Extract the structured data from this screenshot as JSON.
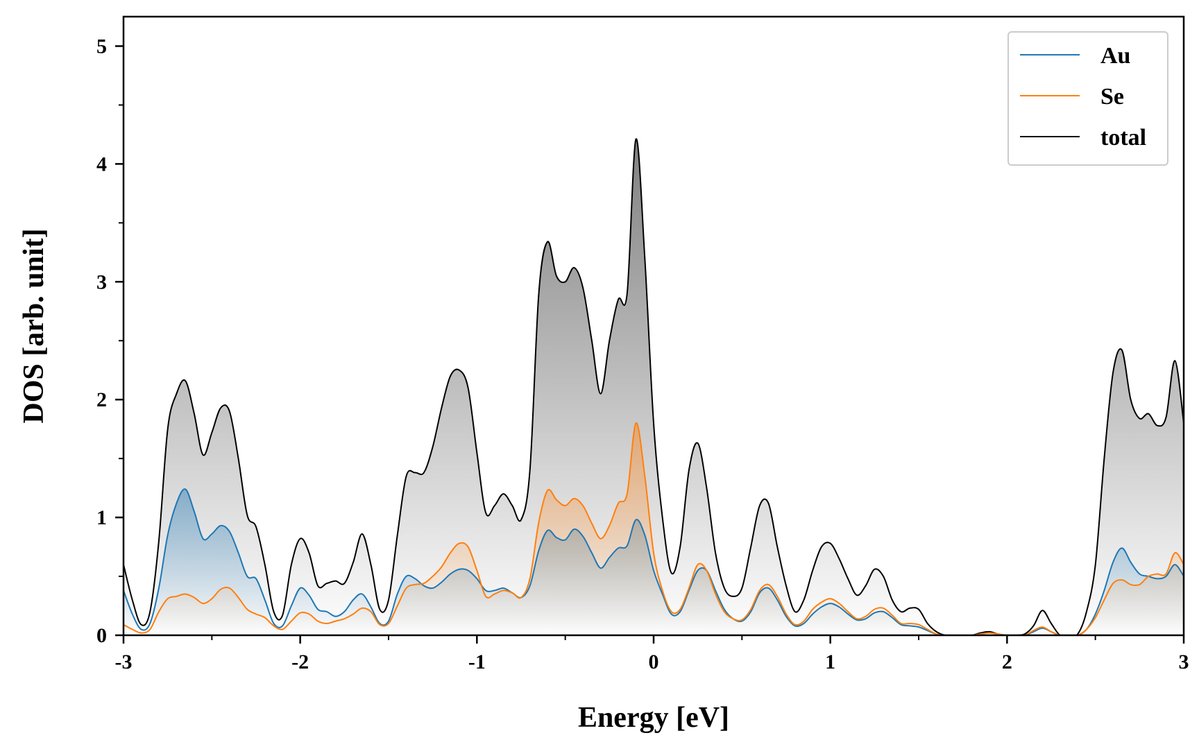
{
  "chart_data": {
    "type": "area",
    "xlabel": "Energy [eV]",
    "ylabel": "DOS [arb. unit]",
    "xlim": [
      -3,
      3
    ],
    "ylim": [
      0,
      5.25
    ],
    "xticks": [
      -3,
      -2,
      -1,
      0,
      1,
      2,
      3
    ],
    "xtick_labels": [
      "-3",
      "-2",
      "-1",
      "0",
      "1",
      "2",
      "3"
    ],
    "yticks": [
      0,
      1,
      2,
      3,
      4,
      5
    ],
    "ytick_labels": [
      "0",
      "1",
      "2",
      "3",
      "4",
      "5"
    ],
    "legend_position": "top-right",
    "grid": false,
    "x": [
      -3.0,
      -2.95,
      -2.9,
      -2.85,
      -2.8,
      -2.75,
      -2.7,
      -2.65,
      -2.6,
      -2.55,
      -2.5,
      -2.45,
      -2.4,
      -2.35,
      -2.3,
      -2.25,
      -2.2,
      -2.15,
      -2.1,
      -2.05,
      -2.0,
      -1.95,
      -1.9,
      -1.85,
      -1.8,
      -1.75,
      -1.7,
      -1.65,
      -1.6,
      -1.55,
      -1.5,
      -1.45,
      -1.4,
      -1.35,
      -1.3,
      -1.25,
      -1.2,
      -1.15,
      -1.1,
      -1.05,
      -1.0,
      -0.95,
      -0.9,
      -0.85,
      -0.8,
      -0.75,
      -0.7,
      -0.65,
      -0.6,
      -0.55,
      -0.5,
      -0.45,
      -0.4,
      -0.35,
      -0.3,
      -0.25,
      -0.2,
      -0.15,
      -0.1,
      -0.05,
      0.0,
      0.05,
      0.1,
      0.15,
      0.2,
      0.25,
      0.3,
      0.35,
      0.4,
      0.45,
      0.5,
      0.55,
      0.6,
      0.65,
      0.7,
      0.75,
      0.8,
      0.85,
      0.9,
      0.95,
      1.0,
      1.05,
      1.1,
      1.15,
      1.2,
      1.25,
      1.3,
      1.35,
      1.4,
      1.45,
      1.5,
      1.55,
      1.6,
      1.65,
      1.7,
      1.75,
      1.8,
      1.85,
      1.9,
      1.95,
      2.0,
      2.05,
      2.1,
      2.15,
      2.2,
      2.25,
      2.3,
      2.35,
      2.4,
      2.45,
      2.5,
      2.55,
      2.6,
      2.65,
      2.7,
      2.75,
      2.8,
      2.85,
      2.9,
      2.95,
      3.0
    ],
    "series": [
      {
        "name": "Au",
        "color": "#1f77b4",
        "values": [
          0.38,
          0.18,
          0.05,
          0.1,
          0.4,
          0.85,
          1.12,
          1.24,
          1.05,
          0.82,
          0.86,
          0.93,
          0.88,
          0.7,
          0.5,
          0.48,
          0.3,
          0.1,
          0.08,
          0.25,
          0.4,
          0.34,
          0.22,
          0.2,
          0.16,
          0.2,
          0.3,
          0.35,
          0.24,
          0.1,
          0.12,
          0.35,
          0.5,
          0.48,
          0.42,
          0.4,
          0.45,
          0.52,
          0.56,
          0.55,
          0.48,
          0.38,
          0.38,
          0.4,
          0.36,
          0.32,
          0.42,
          0.72,
          0.89,
          0.83,
          0.81,
          0.9,
          0.84,
          0.7,
          0.57,
          0.66,
          0.74,
          0.76,
          0.98,
          0.85,
          0.55,
          0.35,
          0.18,
          0.2,
          0.38,
          0.55,
          0.55,
          0.38,
          0.22,
          0.14,
          0.12,
          0.2,
          0.36,
          0.4,
          0.3,
          0.16,
          0.08,
          0.1,
          0.18,
          0.24,
          0.27,
          0.24,
          0.18,
          0.13,
          0.14,
          0.19,
          0.2,
          0.15,
          0.09,
          0.08,
          0.07,
          0.04,
          0.01,
          0.0,
          0.0,
          0.0,
          0.0,
          0.01,
          0.02,
          0.01,
          0.0,
          0.0,
          0.0,
          0.03,
          0.06,
          0.03,
          0.0,
          0.0,
          0.0,
          0.05,
          0.18,
          0.38,
          0.62,
          0.74,
          0.62,
          0.52,
          0.5,
          0.48,
          0.5,
          0.6,
          0.5
        ]
      },
      {
        "name": "Se",
        "color": "#ff7f0e",
        "values": [
          0.09,
          0.05,
          0.02,
          0.05,
          0.2,
          0.31,
          0.33,
          0.35,
          0.32,
          0.27,
          0.31,
          0.39,
          0.4,
          0.32,
          0.22,
          0.18,
          0.15,
          0.08,
          0.05,
          0.12,
          0.19,
          0.18,
          0.12,
          0.1,
          0.12,
          0.14,
          0.18,
          0.23,
          0.2,
          0.09,
          0.1,
          0.25,
          0.4,
          0.43,
          0.44,
          0.5,
          0.58,
          0.7,
          0.78,
          0.75,
          0.55,
          0.33,
          0.35,
          0.38,
          0.36,
          0.32,
          0.48,
          0.96,
          1.23,
          1.15,
          1.1,
          1.16,
          1.1,
          0.95,
          0.82,
          0.93,
          1.12,
          1.2,
          1.8,
          1.35,
          0.7,
          0.38,
          0.2,
          0.22,
          0.4,
          0.6,
          0.55,
          0.35,
          0.2,
          0.14,
          0.13,
          0.22,
          0.38,
          0.43,
          0.33,
          0.18,
          0.09,
          0.12,
          0.22,
          0.28,
          0.31,
          0.27,
          0.2,
          0.14,
          0.16,
          0.22,
          0.23,
          0.17,
          0.1,
          0.1,
          0.09,
          0.05,
          0.01,
          0.0,
          0.0,
          0.0,
          0.0,
          0.01,
          0.02,
          0.01,
          0.0,
          0.0,
          0.0,
          0.04,
          0.07,
          0.03,
          0.0,
          0.0,
          0.0,
          0.05,
          0.15,
          0.3,
          0.44,
          0.47,
          0.43,
          0.43,
          0.5,
          0.52,
          0.52,
          0.7,
          0.6
        ]
      },
      {
        "name": "total",
        "color": "#000000",
        "values": [
          0.6,
          0.3,
          0.09,
          0.2,
          0.8,
          1.75,
          2.05,
          2.16,
          1.88,
          1.53,
          1.72,
          1.93,
          1.9,
          1.5,
          1.02,
          0.92,
          0.6,
          0.2,
          0.17,
          0.6,
          0.82,
          0.7,
          0.42,
          0.44,
          0.46,
          0.44,
          0.62,
          0.86,
          0.6,
          0.22,
          0.3,
          0.85,
          1.35,
          1.38,
          1.38,
          1.6,
          1.93,
          2.2,
          2.25,
          2.1,
          1.55,
          1.04,
          1.1,
          1.2,
          1.1,
          0.98,
          1.4,
          2.9,
          3.34,
          3.05,
          3.0,
          3.12,
          2.95,
          2.5,
          2.05,
          2.5,
          2.85,
          2.9,
          4.21,
          3.2,
          1.8,
          1.0,
          0.53,
          0.75,
          1.4,
          1.63,
          1.25,
          0.7,
          0.4,
          0.33,
          0.4,
          0.75,
          1.1,
          1.12,
          0.75,
          0.42,
          0.2,
          0.3,
          0.55,
          0.75,
          0.78,
          0.65,
          0.48,
          0.34,
          0.42,
          0.56,
          0.5,
          0.3,
          0.2,
          0.23,
          0.22,
          0.1,
          0.03,
          0.0,
          0.0,
          0.0,
          0.0,
          0.02,
          0.03,
          0.01,
          0.0,
          0.0,
          0.01,
          0.08,
          0.21,
          0.1,
          0.0,
          0.0,
          0.01,
          0.2,
          0.6,
          1.5,
          2.23,
          2.42,
          2.0,
          1.84,
          1.88,
          1.78,
          1.85,
          2.33,
          1.8
        ]
      }
    ]
  }
}
